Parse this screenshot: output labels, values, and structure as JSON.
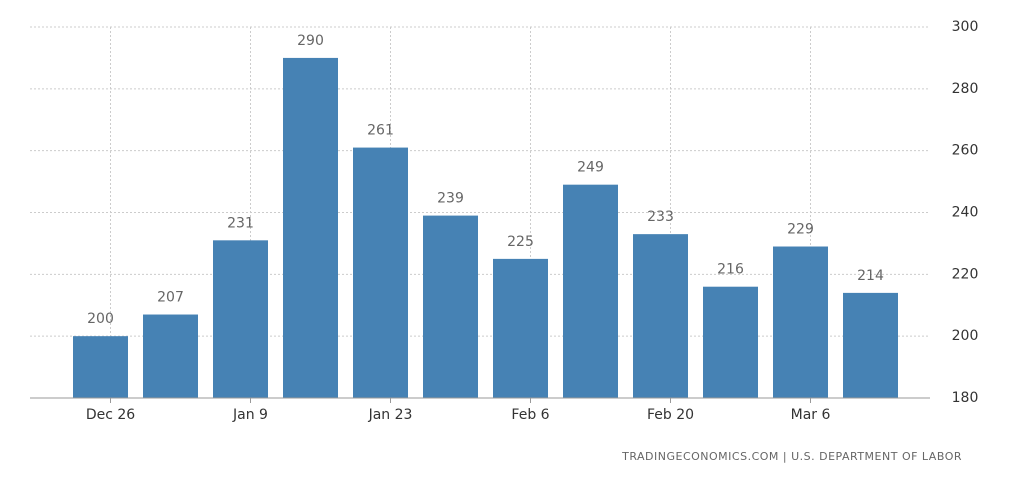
{
  "chart_data": {
    "type": "bar",
    "categories": [
      "Dec 26",
      null,
      "Jan 9",
      null,
      "Jan 23",
      null,
      "Feb 6",
      null,
      "Feb 20",
      null,
      "Mar 6",
      null
    ],
    "values": [
      200,
      207,
      231,
      290,
      261,
      239,
      225,
      249,
      233,
      216,
      229,
      214
    ],
    "color": "#4682b4",
    "ylim": [
      180,
      300
    ],
    "yticks": [
      180,
      200,
      220,
      240,
      260,
      280,
      300
    ],
    "grid": true,
    "source": "TRADINGECONOMICS.COM | U.S. DEPARTMENT OF LABOR"
  }
}
